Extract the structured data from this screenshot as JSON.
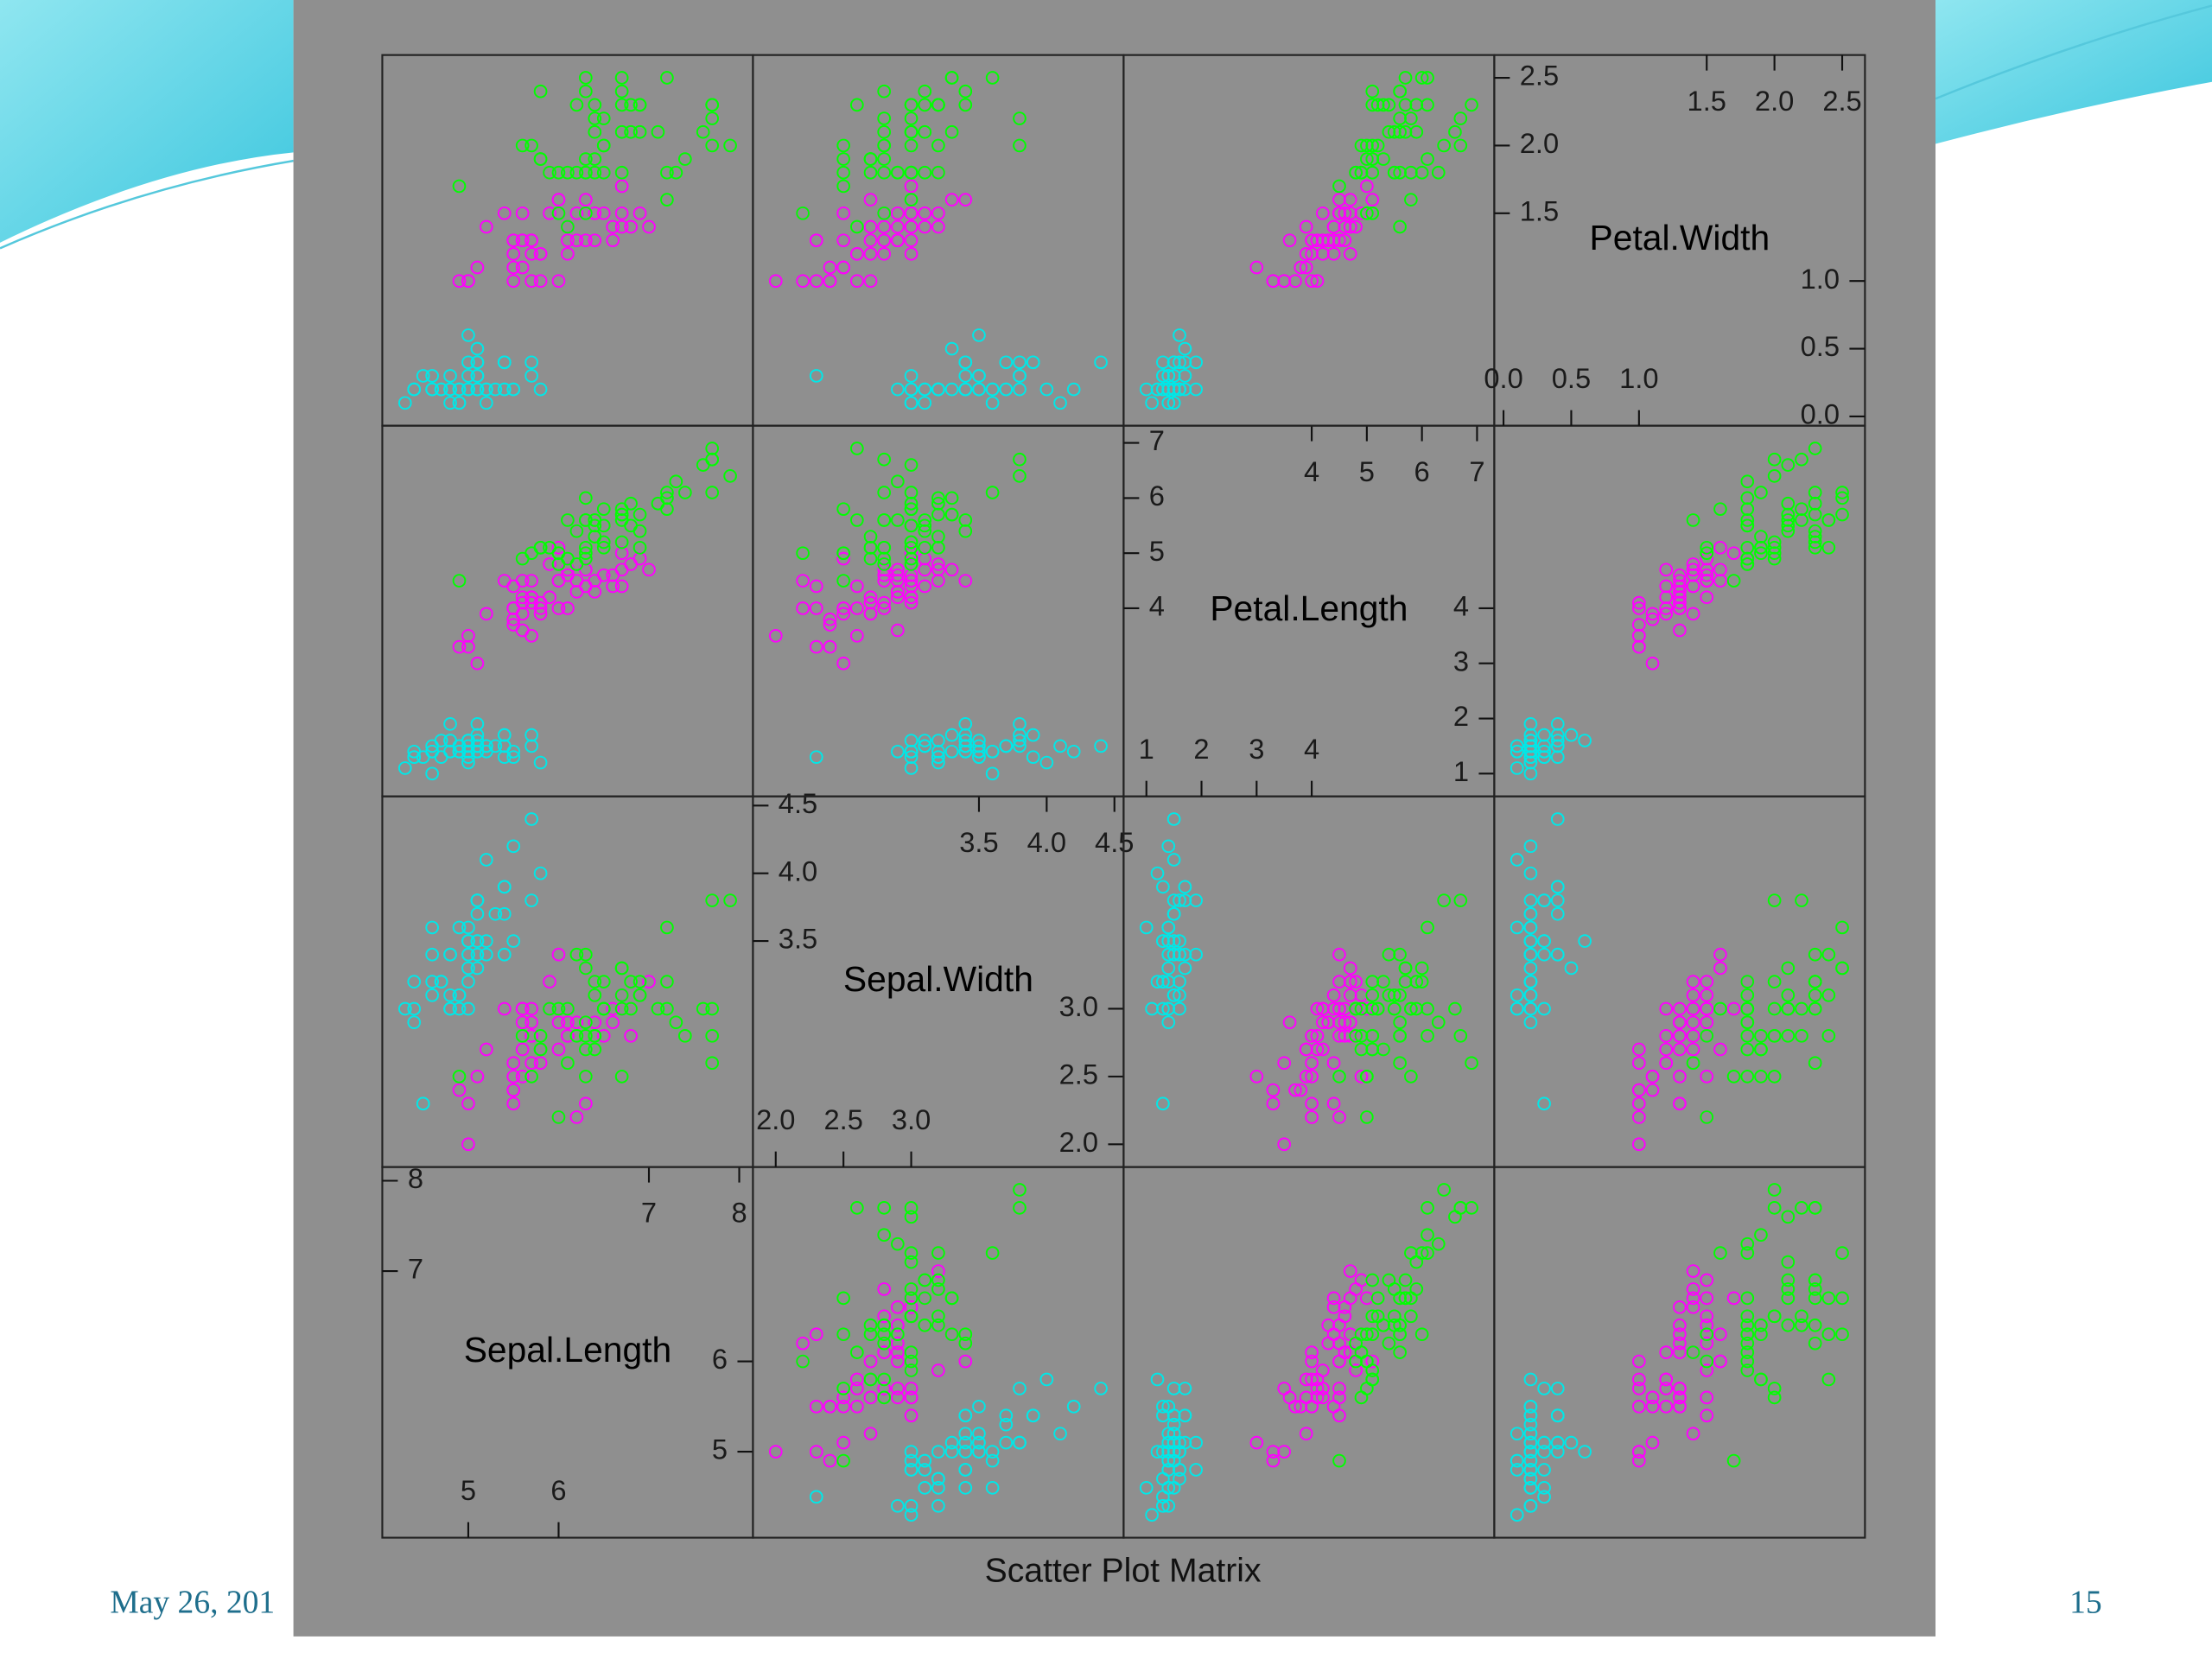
{
  "slide": {
    "date": "May 26, 201",
    "page": "15"
  },
  "chart_data": {
    "type": "splom",
    "title": "Scatter Plot Matrix",
    "variables": [
      {
        "name": "Sepal.Length",
        "lim": [
          4.048,
          8.152
        ],
        "ticks_low": [
          5,
          6
        ],
        "ticks_high": [
          7,
          8
        ]
      },
      {
        "name": "Sepal.Width",
        "lim": [
          1.832,
          4.568
        ],
        "ticks_low": [
          {
            "value": 2,
            "label": "2.0"
          },
          2.5,
          {
            "value": 3,
            "label": "3.0"
          }
        ],
        "ticks_high": [
          3.5,
          {
            "value": 4,
            "label": "4.0"
          },
          4.5
        ]
      },
      {
        "name": "Petal.Length",
        "lim": [
          0.587,
          7.313
        ],
        "ticks_low": [
          1,
          2,
          3,
          4
        ],
        "ticks_high": [
          4,
          5,
          6,
          7
        ]
      },
      {
        "name": "Petal.Width",
        "lim": [
          -0.068,
          2.668
        ],
        "ticks_low": [
          {
            "value": 0,
            "label": "0.0"
          },
          0.5,
          {
            "value": 1,
            "label": "1.0"
          }
        ],
        "ticks_high": [
          1.5,
          {
            "value": 2,
            "label": "2.0"
          },
          2.5
        ]
      }
    ],
    "series": [
      {
        "color": "#00e8e8",
        "data": [
          [
            5.1,
            3.5,
            1.4,
            0.2
          ],
          [
            4.9,
            3.0,
            1.4,
            0.2
          ],
          [
            4.7,
            3.2,
            1.3,
            0.2
          ],
          [
            4.6,
            3.1,
            1.5,
            0.2
          ],
          [
            5.0,
            3.6,
            1.4,
            0.2
          ],
          [
            5.4,
            3.9,
            1.7,
            0.4
          ],
          [
            4.6,
            3.4,
            1.4,
            0.3
          ],
          [
            5.0,
            3.4,
            1.5,
            0.2
          ],
          [
            4.4,
            2.9,
            1.4,
            0.2
          ],
          [
            4.9,
            3.1,
            1.5,
            0.1
          ],
          [
            5.4,
            3.7,
            1.5,
            0.2
          ],
          [
            4.8,
            3.4,
            1.6,
            0.2
          ],
          [
            4.8,
            3.0,
            1.4,
            0.1
          ],
          [
            4.3,
            3.0,
            1.1,
            0.1
          ],
          [
            5.8,
            4.0,
            1.2,
            0.2
          ],
          [
            5.7,
            4.4,
            1.5,
            0.4
          ],
          [
            5.4,
            3.9,
            1.3,
            0.4
          ],
          [
            5.1,
            3.5,
            1.4,
            0.3
          ],
          [
            5.7,
            3.8,
            1.7,
            0.3
          ],
          [
            5.1,
            3.8,
            1.5,
            0.3
          ],
          [
            5.4,
            3.4,
            1.7,
            0.2
          ],
          [
            5.1,
            3.7,
            1.5,
            0.4
          ],
          [
            4.6,
            3.6,
            1.0,
            0.2
          ],
          [
            5.1,
            3.3,
            1.7,
            0.5
          ],
          [
            4.8,
            3.4,
            1.9,
            0.2
          ],
          [
            5.0,
            3.0,
            1.6,
            0.2
          ],
          [
            5.0,
            3.4,
            1.6,
            0.4
          ],
          [
            5.2,
            3.5,
            1.5,
            0.2
          ],
          [
            5.2,
            3.4,
            1.4,
            0.2
          ],
          [
            4.7,
            3.2,
            1.6,
            0.2
          ],
          [
            4.8,
            3.1,
            1.6,
            0.2
          ],
          [
            5.4,
            3.4,
            1.5,
            0.4
          ],
          [
            5.2,
            4.1,
            1.5,
            0.1
          ],
          [
            5.5,
            4.2,
            1.4,
            0.2
          ],
          [
            4.9,
            3.1,
            1.5,
            0.2
          ],
          [
            5.0,
            3.2,
            1.2,
            0.2
          ],
          [
            5.5,
            3.5,
            1.3,
            0.2
          ],
          [
            4.9,
            3.6,
            1.4,
            0.1
          ],
          [
            4.4,
            3.0,
            1.3,
            0.2
          ],
          [
            5.1,
            3.4,
            1.5,
            0.2
          ],
          [
            5.0,
            3.5,
            1.3,
            0.3
          ],
          [
            4.5,
            2.3,
            1.3,
            0.3
          ],
          [
            4.4,
            3.2,
            1.3,
            0.2
          ],
          [
            5.0,
            3.5,
            1.6,
            0.6
          ],
          [
            5.1,
            3.8,
            1.9,
            0.4
          ],
          [
            4.8,
            3.0,
            1.4,
            0.3
          ],
          [
            5.1,
            3.8,
            1.6,
            0.2
          ],
          [
            4.6,
            3.2,
            1.4,
            0.2
          ],
          [
            5.3,
            3.7,
            1.5,
            0.2
          ],
          [
            5.0,
            3.3,
            1.4,
            0.2
          ]
        ]
      },
      {
        "color": "#ff00ff",
        "data": [
          [
            7.0,
            3.2,
            4.7,
            1.4
          ],
          [
            6.4,
            3.2,
            4.5,
            1.5
          ],
          [
            6.9,
            3.1,
            4.9,
            1.5
          ],
          [
            5.5,
            2.3,
            4.0,
            1.3
          ],
          [
            6.5,
            2.8,
            4.6,
            1.5
          ],
          [
            5.7,
            2.8,
            4.5,
            1.3
          ],
          [
            6.3,
            3.3,
            4.7,
            1.6
          ],
          [
            4.9,
            2.4,
            3.3,
            1.0
          ],
          [
            6.6,
            2.9,
            4.6,
            1.3
          ],
          [
            5.2,
            2.7,
            3.9,
            1.4
          ],
          [
            5.0,
            2.0,
            3.5,
            1.0
          ],
          [
            5.9,
            3.0,
            4.2,
            1.5
          ],
          [
            6.0,
            2.2,
            4.0,
            1.0
          ],
          [
            6.1,
            2.9,
            4.7,
            1.4
          ],
          [
            5.6,
            2.9,
            3.6,
            1.3
          ],
          [
            6.7,
            3.1,
            4.4,
            1.4
          ],
          [
            5.6,
            3.0,
            4.5,
            1.5
          ],
          [
            5.8,
            2.7,
            4.1,
            1.0
          ],
          [
            6.2,
            2.2,
            4.5,
            1.5
          ],
          [
            5.6,
            2.5,
            3.9,
            1.1
          ],
          [
            5.9,
            3.2,
            4.8,
            1.8
          ],
          [
            6.1,
            2.8,
            4.0,
            1.3
          ],
          [
            6.3,
            2.5,
            4.9,
            1.5
          ],
          [
            6.1,
            2.8,
            4.7,
            1.2
          ],
          [
            6.4,
            2.9,
            4.3,
            1.3
          ],
          [
            6.6,
            3.0,
            4.4,
            1.4
          ],
          [
            6.8,
            2.8,
            4.8,
            1.4
          ],
          [
            6.7,
            3.0,
            5.0,
            1.7
          ],
          [
            6.0,
            2.9,
            4.5,
            1.5
          ],
          [
            5.7,
            2.6,
            3.5,
            1.0
          ],
          [
            5.5,
            2.4,
            3.8,
            1.1
          ],
          [
            5.5,
            2.4,
            3.7,
            1.0
          ],
          [
            5.8,
            2.7,
            3.9,
            1.2
          ],
          [
            6.0,
            2.7,
            5.1,
            1.6
          ],
          [
            5.4,
            3.0,
            4.5,
            1.5
          ],
          [
            6.0,
            3.4,
            4.5,
            1.6
          ],
          [
            6.7,
            3.1,
            4.7,
            1.5
          ],
          [
            6.3,
            2.3,
            4.4,
            1.3
          ],
          [
            5.6,
            3.0,
            4.1,
            1.3
          ],
          [
            5.5,
            2.5,
            4.0,
            1.3
          ],
          [
            5.5,
            2.6,
            4.4,
            1.2
          ],
          [
            6.1,
            3.0,
            4.6,
            1.4
          ],
          [
            5.8,
            2.6,
            4.0,
            1.2
          ],
          [
            5.0,
            2.3,
            3.3,
            1.0
          ],
          [
            5.6,
            2.7,
            4.2,
            1.3
          ],
          [
            5.7,
            3.0,
            4.2,
            1.2
          ],
          [
            5.7,
            2.9,
            4.2,
            1.3
          ],
          [
            6.2,
            2.9,
            4.3,
            1.3
          ],
          [
            5.1,
            2.5,
            3.0,
            1.1
          ],
          [
            5.7,
            2.8,
            4.1,
            1.3
          ]
        ]
      },
      {
        "color": "#00ff00",
        "data": [
          [
            6.3,
            3.3,
            6.0,
            2.5
          ],
          [
            5.8,
            2.7,
            5.1,
            1.9
          ],
          [
            7.1,
            3.0,
            5.9,
            2.1
          ],
          [
            6.3,
            2.9,
            5.6,
            1.8
          ],
          [
            6.5,
            3.0,
            5.8,
            2.2
          ],
          [
            7.6,
            3.0,
            6.6,
            2.1
          ],
          [
            4.9,
            2.5,
            4.5,
            1.7
          ],
          [
            7.3,
            2.9,
            6.3,
            1.8
          ],
          [
            6.7,
            2.5,
            5.8,
            1.8
          ],
          [
            7.2,
            3.6,
            6.1,
            2.5
          ],
          [
            6.5,
            3.2,
            5.1,
            2.0
          ],
          [
            6.4,
            2.7,
            5.3,
            1.9
          ],
          [
            6.8,
            3.0,
            5.5,
            2.1
          ],
          [
            5.7,
            2.5,
            5.0,
            2.0
          ],
          [
            5.8,
            2.8,
            5.1,
            2.4
          ],
          [
            6.4,
            3.2,
            5.3,
            2.3
          ],
          [
            6.5,
            3.0,
            5.5,
            1.8
          ],
          [
            7.7,
            3.8,
            6.7,
            2.2
          ],
          [
            7.7,
            2.6,
            6.9,
            2.3
          ],
          [
            6.0,
            2.2,
            5.0,
            1.5
          ],
          [
            6.9,
            3.2,
            5.7,
            2.3
          ],
          [
            5.6,
            2.8,
            4.9,
            2.0
          ],
          [
            7.7,
            2.8,
            6.7,
            2.0
          ],
          [
            6.3,
            2.7,
            4.9,
            1.8
          ],
          [
            6.7,
            3.3,
            5.7,
            2.1
          ],
          [
            7.2,
            3.2,
            6.0,
            1.8
          ],
          [
            6.2,
            2.8,
            4.8,
            1.8
          ],
          [
            6.1,
            3.0,
            4.9,
            1.8
          ],
          [
            6.4,
            2.8,
            5.6,
            2.1
          ],
          [
            7.2,
            3.0,
            5.8,
            1.6
          ],
          [
            7.4,
            2.8,
            6.1,
            1.9
          ],
          [
            7.9,
            3.8,
            6.4,
            2.0
          ],
          [
            6.4,
            2.8,
            5.6,
            2.2
          ],
          [
            6.3,
            2.8,
            5.1,
            1.5
          ],
          [
            6.1,
            2.6,
            5.6,
            1.4
          ],
          [
            7.7,
            3.0,
            6.1,
            2.3
          ],
          [
            6.3,
            3.4,
            5.6,
            2.4
          ],
          [
            6.4,
            3.1,
            5.5,
            1.8
          ],
          [
            6.0,
            3.0,
            4.8,
            1.8
          ],
          [
            6.9,
            3.1,
            5.4,
            2.1
          ],
          [
            6.7,
            3.1,
            5.6,
            2.4
          ],
          [
            6.9,
            3.1,
            5.1,
            2.3
          ],
          [
            5.8,
            2.7,
            5.1,
            1.9
          ],
          [
            6.8,
            3.2,
            5.9,
            2.3
          ],
          [
            6.7,
            3.3,
            5.7,
            2.5
          ],
          [
            6.7,
            3.0,
            5.2,
            2.3
          ],
          [
            6.3,
            2.5,
            5.0,
            1.9
          ],
          [
            6.5,
            3.0,
            5.2,
            2.0
          ],
          [
            6.2,
            3.4,
            5.4,
            2.3
          ],
          [
            5.9,
            3.0,
            5.1,
            1.8
          ]
        ]
      }
    ]
  }
}
